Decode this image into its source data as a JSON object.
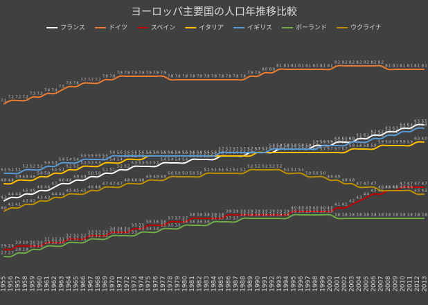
{
  "chart_data": {
    "type": "line",
    "title": "ヨーロッパ主要国の人口年推移比較",
    "categories": [
      "1955",
      "1956",
      "1957",
      "1958",
      "1959",
      "1960",
      "1961",
      "1962",
      "1963",
      "1964",
      "1965",
      "1966",
      "1967",
      "1968",
      "1969",
      "1970",
      "1971",
      "1972",
      "1973",
      "1974",
      "1975",
      "1976",
      "1977",
      "1978",
      "1979",
      "1980",
      "1981",
      "1982",
      "1983",
      "1984",
      "1985",
      "1986",
      "1987",
      "1988",
      "1989",
      "1990",
      "1991",
      "1992",
      "1993",
      "1994",
      "1995",
      "1996",
      "1997",
      "1998",
      "1999",
      "2000",
      "2001",
      "2002",
      "2003",
      "2004",
      "2005",
      "2006",
      "2007",
      "2008",
      "2009",
      "2010",
      "2011",
      "2012",
      "2013"
    ],
    "ylim": [
      2.2,
      9.0
    ],
    "grid": false,
    "legend": "top",
    "series": [
      {
        "name": "フランス",
        "color": "#ffffff",
        "values": [
          4.3,
          4.4,
          4.4,
          4.5,
          4.5,
          4.6,
          4.6,
          4.7,
          4.8,
          4.8,
          4.9,
          4.9,
          5.0,
          5.0,
          5.1,
          5.1,
          5.2,
          5.2,
          5.3,
          5.3,
          5.3,
          5.3,
          5.4,
          5.4,
          5.4,
          5.4,
          5.5,
          5.5,
          5.5,
          5.5,
          5.6,
          5.6,
          5.6,
          5.6,
          5.7,
          5.7,
          5.7,
          5.7,
          5.8,
          5.8,
          5.8,
          5.8,
          5.8,
          5.9,
          5.9,
          5.9,
          6.0,
          6.0,
          6.0,
          6.1,
          6.1,
          6.2,
          6.2,
          6.3,
          6.3,
          6.4,
          6.4,
          6.5,
          6.5
        ],
        "value_labels": [
          "4.3",
          "4.4",
          "4.4",
          "4.5",
          "4.5",
          "4.6",
          "4.6",
          "4.7",
          "4.8",
          "4.8",
          "4.9",
          "4.9",
          "5.0",
          "5.0",
          "5.1",
          "5.1",
          "5.2",
          "5.2",
          "5.3",
          "5.3",
          "5.3",
          "5.3",
          "5.4",
          "5.4",
          "5.4",
          "5.4",
          "5.5",
          "5.5",
          "5.5",
          "5.5",
          "5.6",
          "5.6",
          "5.6",
          "5.6",
          "5.7",
          "5.7",
          "5.7",
          "5.7",
          "5.8",
          "5.8",
          "5.8",
          "5.8",
          "5.8",
          "5.9",
          "5.9",
          "5.9",
          "6.0",
          "6.0",
          "6.0",
          "6.1",
          "6.1",
          "6.2",
          "6.2",
          "6.3",
          "6.3",
          "6.4",
          "6.4",
          "6.5",
          "6.5"
        ]
      },
      {
        "name": "ドイツ",
        "color": "#ed7d31",
        "values": [
          7.1,
          7.2,
          7.2,
          7.2,
          7.3,
          7.3,
          7.4,
          7.4,
          7.5,
          7.6,
          7.6,
          7.7,
          7.7,
          7.7,
          7.8,
          7.8,
          7.9,
          7.9,
          7.9,
          7.9,
          7.9,
          7.9,
          7.9,
          7.8,
          7.8,
          7.8,
          7.8,
          7.8,
          7.8,
          7.8,
          7.8,
          7.8,
          7.8,
          7.8,
          7.9,
          7.9,
          8.0,
          8.0,
          8.1,
          8.1,
          8.1,
          8.1,
          8.1,
          8.1,
          8.1,
          8.1,
          8.2,
          8.2,
          8.2,
          8.2,
          8.2,
          8.2,
          8.2,
          8.1,
          8.1,
          8.1,
          8.1,
          8.1,
          8.1
        ],
        "value_labels": [
          "7.1",
          "7.2",
          "7.2",
          "7.2",
          "7.3",
          "7.3",
          "7.4",
          "7.4",
          "7.5",
          "7.6",
          "7.6",
          "7.7",
          "7.7",
          "7.7",
          "7.8",
          "7.8",
          "7.9",
          "7.9",
          "7.9",
          "7.9",
          "7.9",
          "7.9",
          "7.9",
          "7.8",
          "7.8",
          "7.8",
          "7.8",
          "7.8",
          "7.8",
          "7.8",
          "7.8",
          "7.8",
          "7.8",
          "7.8",
          "7.9",
          "7.9",
          "8.0",
          "8.0",
          "8.1",
          "8.1",
          "8.1",
          "8.1",
          "8.1",
          "8.1",
          "8.1",
          "8.1",
          "8.2",
          "8.2",
          "8.2",
          "8.2",
          "8.2",
          "8.2",
          "8.2",
          "8.1",
          "8.1",
          "8.1",
          "8.1",
          "8.1",
          "8.1"
        ]
      },
      {
        "name": "スペイン",
        "color": "#c00000",
        "values": [
          2.9,
          2.9,
          3.0,
          3.0,
          3.0,
          3.0,
          3.1,
          3.1,
          3.1,
          3.2,
          3.2,
          3.2,
          3.3,
          3.3,
          3.3,
          3.4,
          3.4,
          3.4,
          3.5,
          3.5,
          3.6,
          3.6,
          3.6,
          3.7,
          3.7,
          3.7,
          3.8,
          3.8,
          3.8,
          3.8,
          3.8,
          3.9,
          3.9,
          3.9,
          3.9,
          3.9,
          3.9,
          3.9,
          3.9,
          3.9,
          4.0,
          4.0,
          4.0,
          4.0,
          4.0,
          4.0,
          4.1,
          4.1,
          4.2,
          4.3,
          4.4,
          4.5,
          4.5,
          4.6,
          4.6,
          4.7,
          4.7,
          4.7,
          4.7
        ],
        "value_labels": [
          "2.9",
          "2.9",
          "3.0",
          "3.0",
          "3.0",
          "3.0",
          "3.1",
          "3.1",
          "3.1",
          "3.2",
          "3.2",
          "3.2",
          "3.3",
          "3.3",
          "3.3",
          "3.4",
          "3.4",
          "3.4",
          "3.5",
          "3.5",
          "3.6",
          "3.6",
          "3.6",
          "3.7",
          "3.7",
          "3.7",
          "3.8",
          "3.8",
          "3.8",
          "3.8",
          "3.8",
          "3.9",
          "3.9",
          "3.9",
          "3.9",
          "3.9",
          "3.9",
          "3.9",
          "3.9",
          "3.9",
          "4.0",
          "4.0",
          "4.0",
          "4.0",
          "4.0",
          "4.0",
          "4.1",
          "4.1",
          "4.2",
          "4.3",
          "4.4",
          "4.5",
          "4.5",
          "4.6",
          "4.6",
          "4.7",
          "4.7",
          "4.7",
          "4.7"
        ]
      },
      {
        "name": "イタリア",
        "color": "#ffc000",
        "values": [
          4.8,
          4.8,
          4.9,
          4.9,
          4.9,
          5.0,
          5.0,
          5.1,
          5.1,
          5.2,
          5.2,
          5.3,
          5.3,
          5.3,
          5.4,
          5.4,
          5.4,
          5.5,
          5.5,
          5.5,
          5.6,
          5.6,
          5.6,
          5.6,
          5.6,
          5.6,
          5.6,
          5.6,
          5.6,
          5.6,
          5.6,
          5.6,
          5.6,
          5.6,
          5.6,
          5.7,
          5.7,
          5.7,
          5.7,
          5.7,
          5.7,
          5.7,
          5.7,
          5.7,
          5.7,
          5.7,
          5.7,
          5.7,
          5.8,
          5.8,
          5.8,
          5.8,
          5.9,
          5.9,
          5.9,
          5.9,
          5.9,
          6.0,
          6.0
        ],
        "value_labels": [
          "4.8",
          "4.8",
          "4.9",
          "4.9",
          "4.9",
          "5.0",
          "5.0",
          "5.1",
          "5.1",
          "5.2",
          "5.2",
          "5.3",
          "5.3",
          "5.3",
          "5.4",
          "5.4",
          "5.4",
          "5.5",
          "5.5",
          "5.5",
          "5.6",
          "5.6",
          "5.6",
          "5.6",
          "5.6",
          "5.6",
          "5.6",
          "5.6",
          "5.6",
          "5.6",
          "5.6",
          "5.6",
          "5.6",
          "5.6",
          "5.6",
          "5.7",
          "5.7",
          "5.7",
          "5.7",
          "5.7",
          "5.7",
          "5.7",
          "5.7",
          "5.7",
          "5.7",
          "5.7",
          "5.7",
          "5.7",
          "5.8",
          "5.8",
          "5.8",
          "5.8",
          "5.9",
          "5.9",
          "5.9",
          "5.9",
          "5.9",
          "6.0",
          "6.0"
        ]
      },
      {
        "name": "イギリス",
        "color": "#5b9bd5",
        "values": [
          5.1,
          5.1,
          5.1,
          5.2,
          5.2,
          5.2,
          5.3,
          5.3,
          5.4,
          5.4,
          5.4,
          5.5,
          5.5,
          5.5,
          5.5,
          5.6,
          5.6,
          5.6,
          5.6,
          5.6,
          5.6,
          5.6,
          5.6,
          5.6,
          5.6,
          5.6,
          5.6,
          5.6,
          5.6,
          5.6,
          5.7,
          5.7,
          5.7,
          5.7,
          5.7,
          5.7,
          5.7,
          5.8,
          5.8,
          5.8,
          5.8,
          5.8,
          5.8,
          5.8,
          5.9,
          5.9,
          5.9,
          5.9,
          6.0,
          6.0,
          6.0,
          6.1,
          6.1,
          6.2,
          6.2,
          6.3,
          6.3,
          6.4,
          6.4
        ],
        "value_labels": [
          "5.1",
          "5.1",
          "5.1",
          "5.2",
          "5.2",
          "5.2",
          "5.3",
          "5.3",
          "5.4",
          "5.4",
          "5.4",
          "5.5",
          "5.5",
          "5.5",
          "5.5",
          "5.6",
          "5.6",
          "5.6",
          "5.6",
          "5.6",
          "5.6",
          "5.6",
          "5.6",
          "5.6",
          "5.6",
          "5.6",
          "5.6",
          "5.6",
          "5.6",
          "5.6",
          "5.7",
          "5.7",
          "5.7",
          "5.7",
          "5.7",
          "5.7",
          "5.7",
          "5.8",
          "5.8",
          "5.8",
          "5.8",
          "5.8",
          "5.8",
          "5.8",
          "5.9",
          "5.9",
          "5.9",
          "5.9",
          "6.0",
          "6.0",
          "6.0",
          "6.1",
          "6.1",
          "6.2",
          "6.2",
          "6.3",
          "6.3",
          "6.4",
          "6.4"
        ]
      },
      {
        "name": "ポーランド",
        "color": "#70ad47",
        "values": [
          2.7,
          2.7,
          2.8,
          2.8,
          2.9,
          2.9,
          3.0,
          3.0,
          3.0,
          3.1,
          3.1,
          3.1,
          3.2,
          3.2,
          3.2,
          3.3,
          3.3,
          3.3,
          3.3,
          3.4,
          3.4,
          3.4,
          3.5,
          3.5,
          3.5,
          3.6,
          3.6,
          3.6,
          3.6,
          3.7,
          3.7,
          3.7,
          3.7,
          3.8,
          3.8,
          3.8,
          3.8,
          3.8,
          3.8,
          3.8,
          3.9,
          3.9,
          3.9,
          3.9,
          3.9,
          3.9,
          3.8,
          3.8,
          3.8,
          3.8,
          3.8,
          3.8,
          3.8,
          3.8,
          3.8,
          3.8,
          3.8,
          3.8,
          3.8
        ],
        "value_labels": [
          "2.7",
          "2.7",
          "2.8",
          "2.8",
          "2.9",
          "2.9",
          "3.0",
          "3.0",
          "3.0",
          "3.1",
          "3.1",
          "3.1",
          "3.2",
          "3.2",
          "3.2",
          "3.3",
          "3.3",
          "3.3",
          "3.3",
          "3.4",
          "3.4",
          "3.4",
          "3.5",
          "3.5",
          "3.5",
          "3.6",
          "3.6",
          "3.6",
          "3.6",
          "3.7",
          "3.7",
          "3.7",
          "3.7",
          "3.8",
          "3.8",
          "3.8",
          "3.8",
          "3.8",
          "3.8",
          "3.8",
          "3.9",
          "3.9",
          "3.9",
          "3.9",
          "3.9",
          "3.9",
          "3.8",
          "3.8",
          "3.8",
          "3.8",
          "3.8",
          "3.8",
          "3.8",
          "3.8",
          "3.8",
          "3.8",
          "3.8",
          "3.8",
          "3.8"
        ]
      },
      {
        "name": "ウクライナ",
        "color": "#bf9000",
        "values": [
          4.0,
          4.1,
          4.1,
          4.2,
          4.2,
          4.3,
          4.3,
          4.4,
          4.4,
          4.5,
          4.5,
          4.5,
          4.6,
          4.6,
          4.7,
          4.7,
          4.7,
          4.8,
          4.8,
          4.8,
          4.9,
          4.9,
          4.9,
          5.0,
          5.0,
          5.0,
          5.0,
          5.0,
          5.1,
          5.1,
          5.1,
          5.1,
          5.1,
          5.1,
          5.2,
          5.2,
          5.2,
          5.2,
          5.2,
          5.1,
          5.1,
          5.1,
          5.0,
          5.0,
          5.0,
          4.9,
          4.9,
          4.8,
          4.8,
          4.7,
          4.7,
          4.7,
          4.6,
          4.6,
          4.6,
          4.6,
          4.6,
          4.5,
          4.5
        ],
        "value_labels": [
          "4.0",
          "4.1",
          "4.1",
          "4.2",
          "4.2",
          "4.3",
          "4.3",
          "4.4",
          "4.4",
          "4.5",
          "4.5",
          "4.5",
          "4.6",
          "4.6",
          "4.7",
          "4.7",
          "4.7",
          "4.8",
          "4.8",
          "4.8",
          "4.9",
          "4.9",
          "4.9",
          "5.0",
          "5.0",
          "5.0",
          "5.0",
          "5.0",
          "5.1",
          "5.1",
          "5.1",
          "5.1",
          "5.1",
          "5.1",
          "5.2",
          "5.2",
          "5.2",
          "5.2",
          "5.2",
          "5.1",
          "5.1",
          "5.1",
          "5.0",
          "5.0",
          "5.0",
          "4.9",
          "4.9",
          "4.8",
          "4.8",
          "4.7",
          "4.7",
          "4.7",
          "4.6",
          "4.6",
          "4.6",
          "4.6",
          "4.6",
          "4.5",
          "4.5"
        ]
      }
    ]
  }
}
